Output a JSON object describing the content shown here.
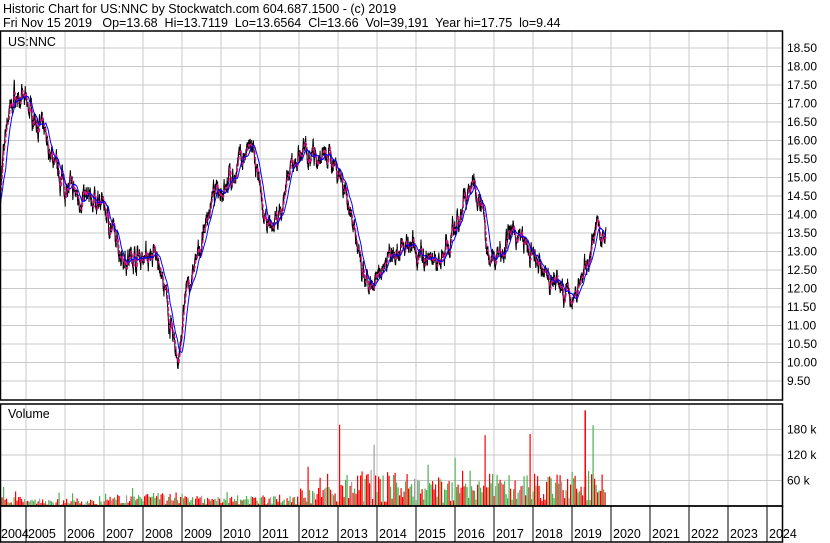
{
  "header": {
    "title": "Historic Chart for US:NNC by Stockwatch.com 604.687.1500 - (c) 2019",
    "quote": "Fri Nov 15 2019   Op=13.68  Hi=13.7119  Lo=13.6564  Cl=13.66  Vol=39,191  Year hi=17.75  lo=9.44"
  },
  "colors": {
    "price": "#000000",
    "ma_short": "#e0138c",
    "ma_long": "#0000ff",
    "vol_up": "#4caf50",
    "vol_down": "#ff0000",
    "vol_flat": "#a0a0a0",
    "grid": "#c8c8c8"
  },
  "chart_data": [
    {
      "type": "line",
      "title": "US:NNC",
      "x_ticks": [
        "2004",
        "2005",
        "2006",
        "2007",
        "2008",
        "2009",
        "2010",
        "2011",
        "2012",
        "2013",
        "2014",
        "2015",
        "2016",
        "2017",
        "2018",
        "2019",
        "2020",
        "2021",
        "2022",
        "2023",
        "2024"
      ],
      "y_ticks": [
        "9.50",
        "10.00",
        "10.50",
        "11.00",
        "11.50",
        "12.00",
        "12.50",
        "13.00",
        "13.50",
        "14.00",
        "14.50",
        "15.00",
        "15.50",
        "16.00",
        "16.50",
        "17.00",
        "17.50",
        "18.00",
        "18.50"
      ],
      "ylim": [
        9.5,
        18.5
      ],
      "grid": true,
      "series": [
        {
          "x": [
            2004.3,
            2004.5,
            2004.7,
            2005.0,
            2005.3,
            2005.5,
            2005.8,
            2006.0,
            2006.3,
            2006.6,
            2007.0,
            2007.3,
            2007.6,
            2008.0,
            2008.4,
            2008.7,
            2008.9,
            2009.1,
            2009.4,
            2009.7,
            2010.0,
            2010.3,
            2010.5,
            2010.8,
            2011.0,
            2011.2,
            2011.5,
            2011.8,
            2012.0,
            2012.3,
            2012.6,
            2012.9,
            2013.1,
            2013.4,
            2013.6,
            2013.9,
            2014.1,
            2014.4,
            2014.8,
            2015.1,
            2015.4,
            2015.6,
            2015.9,
            2016.2,
            2016.5,
            2016.7,
            2016.8,
            2017.0,
            2017.3,
            2017.6,
            2017.9,
            2018.1,
            2018.4,
            2018.7,
            2018.9,
            2019.1,
            2019.4,
            2019.6,
            2019.87
          ],
          "y": [
            14.0,
            16.5,
            17.2,
            17.0,
            16.5,
            16.0,
            15.2,
            14.8,
            14.5,
            14.4,
            14.3,
            13.2,
            12.8,
            12.9,
            12.8,
            11.0,
            10.0,
            11.8,
            12.8,
            14.2,
            14.8,
            15.0,
            15.5,
            15.8,
            14.5,
            13.5,
            14.0,
            15.2,
            15.6,
            15.8,
            15.5,
            15.5,
            15.0,
            13.8,
            12.3,
            11.8,
            12.6,
            13.1,
            13.1,
            12.9,
            12.8,
            12.8,
            13.3,
            14.3,
            14.9,
            14.3,
            13.0,
            12.8,
            13.3,
            13.5,
            13.0,
            12.6,
            12.3,
            12.1,
            11.7,
            11.9,
            12.7,
            13.6,
            13.66
          ]
        }
      ]
    },
    {
      "type": "bar",
      "title": "Volume",
      "y_ticks": [
        "60 k",
        "120 k",
        "180 k"
      ],
      "ylim": [
        0,
        230000
      ],
      "typical_volume_by_year": {
        "2004": 12000,
        "2005": 10000,
        "2006": 10000,
        "2007": 15000,
        "2008": 18000,
        "2009": 15000,
        "2010": 15000,
        "2011": 15000,
        "2012": 25000,
        "2013": 50000,
        "2014": 45000,
        "2015": 40000,
        "2016": 50000,
        "2017": 45000,
        "2018": 45000,
        "2019": 50000
      },
      "max_volume": 225000
    }
  ]
}
